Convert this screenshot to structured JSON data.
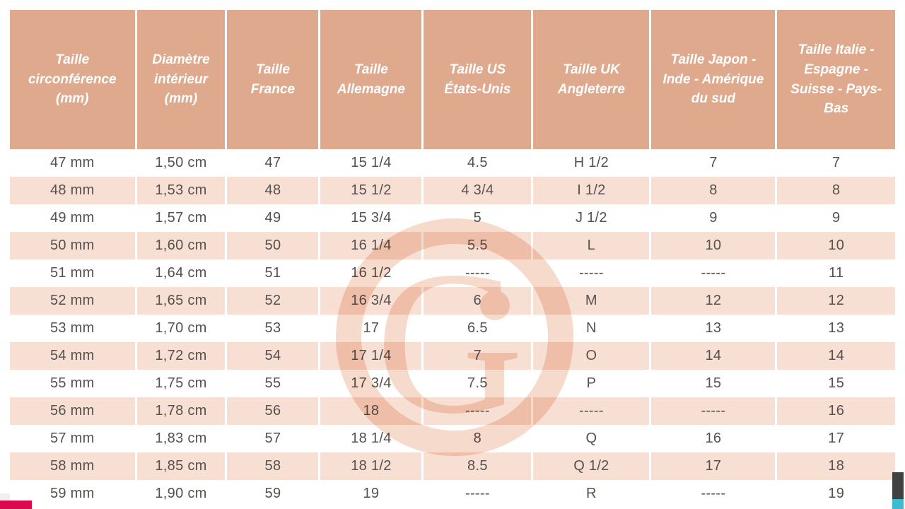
{
  "colors": {
    "header_bg": "#dfa98d",
    "header_text": "#ffffff",
    "row_pink": "#f8dfd3",
    "row_white": "#ffffff",
    "cell_text": "#56504e",
    "separator": "#ffffff",
    "watermark": "#f6dacc",
    "fragment_dark": "#414042",
    "fragment_cyan": "#3bbcd0",
    "fragment_magenta": "#d9084f",
    "fragment_gray": "#f0eff1"
  },
  "watermark": {
    "letter": "G"
  },
  "chart_data": {
    "type": "table",
    "columns": [
      "Taille circonférence (mm)",
      "Diamètre intérieur (mm)",
      "Taille France",
      "Taille Allemagne",
      "Taille US États-Unis",
      "Taille UK Angleterre",
      "Taille Japon - Inde - Amérique du sud",
      "Taille Italie - Espagne - Suisse - Pays-Bas"
    ],
    "rows": [
      [
        "47 mm",
        "1,50 cm",
        "47",
        "15 1/4",
        "4.5",
        "H 1/2",
        "7",
        "7"
      ],
      [
        "48 mm",
        "1,53 cm",
        "48",
        "15 1/2",
        "4 3/4",
        "I 1/2",
        "8",
        "8"
      ],
      [
        "49 mm",
        "1,57 cm",
        "49",
        "15 3/4",
        "5",
        "J 1/2",
        "9",
        "9"
      ],
      [
        "50 mm",
        "1,60 cm",
        "50",
        "16 1/4",
        "5.5",
        "L",
        "10",
        "10"
      ],
      [
        "51 mm",
        "1,64 cm",
        "51",
        "16 1/2",
        "-----",
        "-----",
        "-----",
        "11"
      ],
      [
        "52 mm",
        "1,65 cm",
        "52",
        "16 3/4",
        "6",
        "M",
        "12",
        "12"
      ],
      [
        "53 mm",
        "1,70 cm",
        "53",
        "17",
        "6.5",
        "N",
        "13",
        "13"
      ],
      [
        "54 mm",
        "1,72 cm",
        "54",
        "17 1/4",
        "7",
        "O",
        "14",
        "14"
      ],
      [
        "55 mm",
        "1,75 cm",
        "55",
        "17 3/4",
        "7.5",
        "P",
        "15",
        "15"
      ],
      [
        "56 mm",
        "1,78 cm",
        "56",
        "18",
        "-----",
        "-----",
        "-----",
        "16"
      ],
      [
        "57 mm",
        "1,83 cm",
        "57",
        "18 1/4",
        "8",
        "Q",
        "16",
        "17"
      ],
      [
        "58 mm",
        "1,85 cm",
        "58",
        "18 1/2",
        "8.5",
        "Q 1/2",
        "17",
        "18"
      ],
      [
        "59 mm",
        "1,90 cm",
        "59",
        "19",
        "-----",
        "R",
        "-----",
        "19"
      ]
    ]
  }
}
